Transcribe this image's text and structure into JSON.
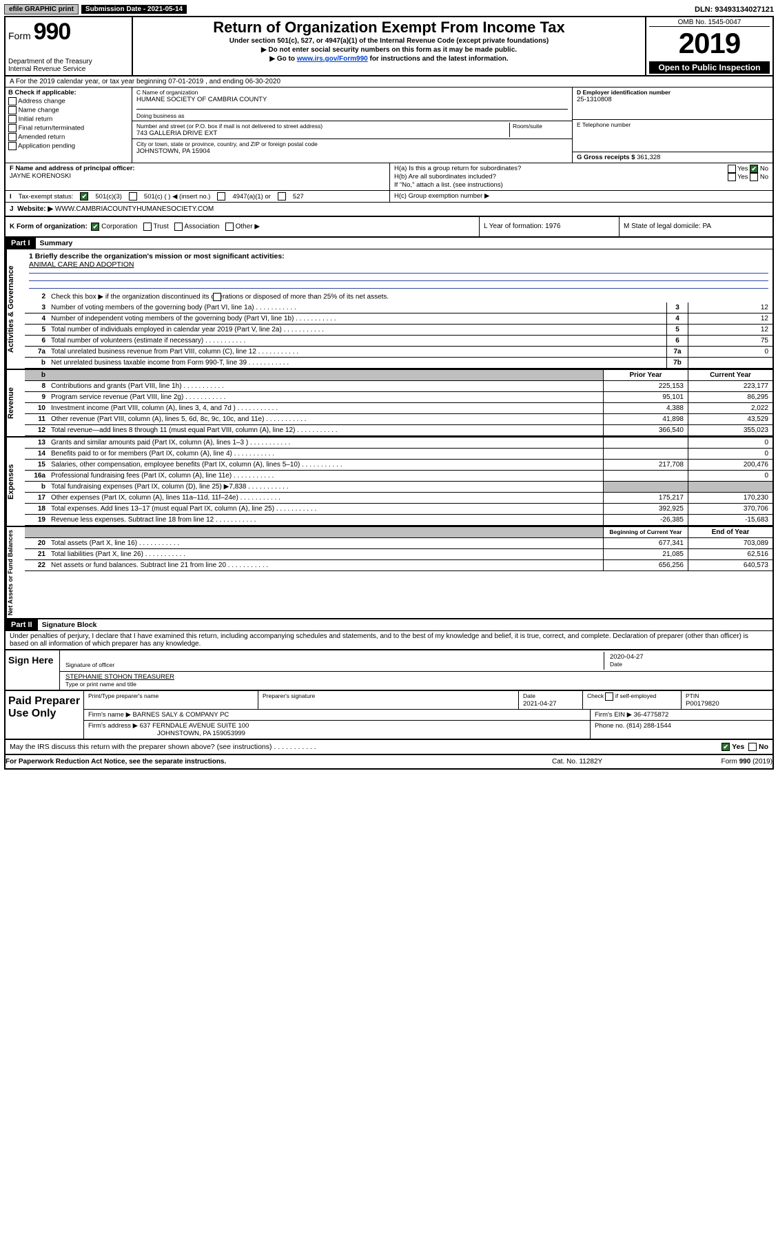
{
  "top": {
    "efile": "efile GRAPHIC print",
    "submission": "Submission Date - 2021-05-14",
    "dln": "DLN: 93493134027121"
  },
  "header": {
    "form": "Form",
    "formnum": "990",
    "dept": "Department of the Treasury\nInternal Revenue Service",
    "title": "Return of Organization Exempt From Income Tax",
    "sub1": "Under section 501(c), 527, or 4947(a)(1) of the Internal Revenue Code (except private foundations)",
    "sub2": "▶ Do not enter social security numbers on this form as it may be made public.",
    "sub3a": "▶ Go to ",
    "sub3b": "www.irs.gov/Form990",
    "sub3c": " for instructions and the latest information.",
    "omb": "OMB No. 1545-0047",
    "year": "2019",
    "open": "Open to Public Inspection"
  },
  "a_line": "A For the 2019 calendar year, or tax year beginning 07-01-2019    , and ending 06-30-2020",
  "b": {
    "label": "B Check if applicable:",
    "addr": "Address change",
    "name": "Name change",
    "init": "Initial return",
    "fin": "Final return/terminated",
    "amend": "Amended return",
    "app": "Application pending"
  },
  "c": {
    "c_label": "C Name of organization",
    "org": "HUMANE SOCIETY OF CAMBRIA COUNTY",
    "dba_label": "Doing business as",
    "street_label": "Number and street (or P.O. box if mail is not delivered to street address)",
    "room_label": "Room/suite",
    "street": "743 GALLERIA DRIVE EXT",
    "city_label": "City or town, state or province, country, and ZIP or foreign postal code",
    "city": "JOHNSTOWN, PA  15904"
  },
  "d": {
    "label": "D Employer identification number",
    "val": "25-1310808"
  },
  "e": {
    "label": "E Telephone number"
  },
  "g": {
    "label": "G Gross receipts $ ",
    "val": "361,328"
  },
  "f": {
    "label": "F  Name and address of principal officer:",
    "name": "JAYNE KORENOSKI"
  },
  "h": {
    "a": "H(a)  Is this a group return for subordinates?",
    "b": "H(b)  Are all subordinates included?",
    "bnote": "If \"No,\" attach a list. (see instructions)",
    "c": "H(c)  Group exemption number ▶",
    "yes": "Yes",
    "no": "No"
  },
  "i": {
    "label": "Tax-exempt status:",
    "o1": "501(c)(3)",
    "o2": "501(c) (  ) ◀ (insert no.)",
    "o3": "4947(a)(1) or",
    "o4": "527"
  },
  "j": {
    "label": "Website: ▶",
    "val": "WWW.CAMBRIACOUNTYHUMANESOCIETY.COM"
  },
  "k": {
    "label": "K Form of organization:",
    "corp": "Corporation",
    "trust": "Trust",
    "assoc": "Association",
    "other": "Other ▶",
    "l": "L Year of formation: 1976",
    "m": "M State of legal domicile: PA"
  },
  "part1": {
    "title": "Part I",
    "subtitle": "Summary",
    "sections": {
      "governance": "Activities & Governance",
      "revenue": "Revenue",
      "expenses": "Expenses",
      "netassets": "Net Assets or Fund Balances"
    },
    "q1": "1  Briefly describe the organization's mission or most significant activities:",
    "q1v": "ANIMAL CARE AND ADOPTION",
    "q2": "Check this box ▶         if the organization discontinued its operations or disposed of more than 25% of its net assets.",
    "lines": [
      {
        "n": "2",
        "label": "",
        "num": "",
        "pv": "",
        "cv": ""
      },
      {
        "n": "3",
        "label": "Number of voting members of the governing body (Part VI, line 1a)",
        "num": "3",
        "v": "12"
      },
      {
        "n": "4",
        "label": "Number of independent voting members of the governing body (Part VI, line 1b)",
        "num": "4",
        "v": "12"
      },
      {
        "n": "5",
        "label": "Total number of individuals employed in calendar year 2019 (Part V, line 2a)",
        "num": "5",
        "v": "12"
      },
      {
        "n": "6",
        "label": "Total number of volunteers (estimate if necessary)",
        "num": "6",
        "v": "75"
      },
      {
        "n": "7a",
        "label": "Total unrelated business revenue from Part VIII, column (C), line 12",
        "num": "7a",
        "v": "0"
      },
      {
        "n": "b",
        "label": "Net unrelated business taxable income from Form 990-T, line 39",
        "num": "7b",
        "v": ""
      }
    ],
    "revHeader": {
      "py": "Prior Year",
      "cy": "Current Year"
    },
    "rev": [
      {
        "n": "8",
        "label": "Contributions and grants (Part VIII, line 1h)",
        "pv": "225,153",
        "cv": "223,177"
      },
      {
        "n": "9",
        "label": "Program service revenue (Part VIII, line 2g)",
        "pv": "95,101",
        "cv": "86,295"
      },
      {
        "n": "10",
        "label": "Investment income (Part VIII, column (A), lines 3, 4, and 7d )",
        "pv": "4,388",
        "cv": "2,022"
      },
      {
        "n": "11",
        "label": "Other revenue (Part VIII, column (A), lines 5, 6d, 8c, 9c, 10c, and 11e)",
        "pv": "41,898",
        "cv": "43,529"
      },
      {
        "n": "12",
        "label": "Total revenue—add lines 8 through 11 (must equal Part VIII, column (A), line 12)",
        "pv": "366,540",
        "cv": "355,023"
      }
    ],
    "exp": [
      {
        "n": "13",
        "label": "Grants and similar amounts paid (Part IX, column (A), lines 1–3 )",
        "pv": "",
        "cv": "0"
      },
      {
        "n": "14",
        "label": "Benefits paid to or for members (Part IX, column (A), line 4)",
        "pv": "",
        "cv": "0"
      },
      {
        "n": "15",
        "label": "Salaries, other compensation, employee benefits (Part IX, column (A), lines 5–10)",
        "pv": "217,708",
        "cv": "200,476"
      },
      {
        "n": "16a",
        "label": "Professional fundraising fees (Part IX, column (A), line 11e)",
        "pv": "",
        "cv": "0"
      },
      {
        "n": "b",
        "label": "Total fundraising expenses (Part IX, column (D), line 25) ▶7,838",
        "pv": "—grey—",
        "cv": "—grey—"
      },
      {
        "n": "17",
        "label": "Other expenses (Part IX, column (A), lines 11a–11d, 11f–24e)",
        "pv": "175,217",
        "cv": "170,230"
      },
      {
        "n": "18",
        "label": "Total expenses. Add lines 13–17 (must equal Part IX, column (A), line 25)",
        "pv": "392,925",
        "cv": "370,706"
      },
      {
        "n": "19",
        "label": "Revenue less expenses. Subtract line 18 from line 12",
        "pv": "-26,385",
        "cv": "-15,683"
      }
    ],
    "naHeader": {
      "py": "Beginning of Current Year",
      "cy": "End of Year"
    },
    "na": [
      {
        "n": "20",
        "label": "Total assets (Part X, line 16)",
        "pv": "677,341",
        "cv": "703,089"
      },
      {
        "n": "21",
        "label": "Total liabilities (Part X, line 26)",
        "pv": "21,085",
        "cv": "62,516"
      },
      {
        "n": "22",
        "label": "Net assets or fund balances. Subtract line 21 from line 20",
        "pv": "656,256",
        "cv": "640,573"
      }
    ]
  },
  "part2": {
    "title": "Part II",
    "subtitle": "Signature Block",
    "decl": "Under penalties of perjury, I declare that I have examined this return, including accompanying schedules and statements, and to the best of my knowledge and belief, it is true, correct, and complete. Declaration of preparer (other than officer) is based on all information of which preparer has any knowledge.",
    "signHere": "Sign Here",
    "sigOff": "Signature of officer",
    "date": "Date",
    "dateVal": "2020-04-27",
    "sigOffName": "STEPHANIE STOHON TREASURER",
    "sigOffName2": "Type or print name and title",
    "paid": "Paid Preparer Use Only",
    "ppname": "Print/Type preparer's name",
    "ppsig": "Preparer's signature",
    "ppdate": "Date",
    "ppdateVal": "2021-04-27",
    "ppcheck": "Check         if self-employed",
    "ptin": "PTIN",
    "ptinVal": "P00179820",
    "firmName": "Firm's name    ▶",
    "firmNameVal": "BARNES SALY & COMPANY PC",
    "firmEin": "Firm's EIN ▶ 36-4775872",
    "firmAddr": "Firm's address ▶",
    "firmAddrVal": "637 FERNDALE AVENUE SUITE 100",
    "firmCity": "JOHNSTOWN, PA  159053999",
    "firmPhone": "Phone no. (814) 288-1544"
  },
  "footer": {
    "q": "May the IRS discuss this return with the preparer shown above? (see instructions)",
    "yes": "Yes",
    "no": "No",
    "pra": "For Paperwork Reduction Act Notice, see the separate instructions.",
    "cat": "Cat. No. 11282Y",
    "form": "Form 990 (2019)"
  }
}
